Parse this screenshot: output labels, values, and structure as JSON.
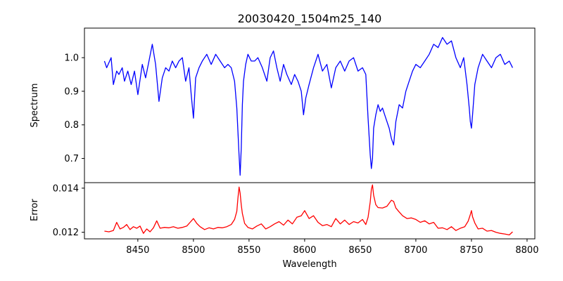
{
  "figure": {
    "title": "20030420_1504m25_140"
  },
  "chart_data": [
    {
      "type": "line",
      "panel": "spectrum",
      "title": "20030420_1504m25_140",
      "xlabel": "",
      "ylabel": "Spectrum",
      "xlim": [
        8402,
        8807
      ],
      "ylim": [
        0.628,
        1.088
      ],
      "yticks": [
        0.7,
        0.8,
        0.9,
        1.0
      ],
      "ytick_labels": [
        "0.7",
        "0.8",
        "0.9",
        "1.0"
      ],
      "grid": false,
      "color": "#0000ff",
      "series": [
        {
          "x": [
            8420,
            8422,
            8426,
            8428,
            8431,
            8433,
            8436,
            8438,
            8441,
            8444,
            8447,
            8450,
            8454,
            8457,
            8460,
            8463,
            8466,
            8469,
            8472,
            8475,
            8478,
            8481,
            8484,
            8487,
            8490,
            8493,
            8496,
            8498,
            8500,
            8502,
            8505,
            8508,
            8512,
            8516,
            8520,
            8524,
            8528,
            8531,
            8534,
            8537,
            8539,
            8540,
            8541,
            8542,
            8543,
            8544,
            8545,
            8547,
            8549,
            8552,
            8555,
            8558,
            8562,
            8566,
            8569,
            8572,
            8575,
            8578,
            8581,
            8584,
            8588,
            8591,
            8594,
            8597,
            8599,
            8601,
            8604,
            8608,
            8612,
            8616,
            8620,
            8624,
            8628,
            8632,
            8636,
            8640,
            8644,
            8648,
            8652,
            8655,
            8657,
            8659,
            8660,
            8661,
            8662,
            8664,
            8666,
            8668,
            8670,
            8673,
            8676,
            8678,
            8680,
            8682,
            8685,
            8688,
            8691,
            8694,
            8697,
            8700,
            8704,
            8708,
            8712,
            8716,
            8720,
            8724,
            8728,
            8732,
            8736,
            8740,
            8743,
            8746,
            8748,
            8749,
            8750,
            8751,
            8753,
            8756,
            8760,
            8764,
            8768,
            8772,
            8776,
            8780,
            8784,
            8787
          ],
          "y": [
            0.99,
            0.97,
            1.0,
            0.92,
            0.96,
            0.95,
            0.97,
            0.93,
            0.96,
            0.92,
            0.96,
            0.89,
            0.98,
            0.94,
            0.99,
            1.04,
            0.98,
            0.87,
            0.94,
            0.97,
            0.96,
            0.99,
            0.97,
            0.99,
            1.0,
            0.93,
            0.97,
            0.89,
            0.82,
            0.94,
            0.97,
            0.99,
            1.01,
            0.98,
            1.01,
            0.99,
            0.97,
            0.98,
            0.97,
            0.93,
            0.85,
            0.78,
            0.71,
            0.65,
            0.73,
            0.86,
            0.93,
            0.98,
            1.01,
            0.99,
            0.99,
            1.0,
            0.97,
            0.93,
            1.0,
            1.02,
            0.97,
            0.93,
            0.98,
            0.95,
            0.92,
            0.95,
            0.93,
            0.9,
            0.83,
            0.88,
            0.92,
            0.97,
            1.01,
            0.96,
            0.98,
            0.91,
            0.97,
            0.99,
            0.96,
            0.99,
            1.0,
            0.96,
            0.97,
            0.95,
            0.82,
            0.71,
            0.67,
            0.7,
            0.79,
            0.83,
            0.86,
            0.84,
            0.85,
            0.82,
            0.79,
            0.76,
            0.74,
            0.81,
            0.86,
            0.85,
            0.9,
            0.93,
            0.96,
            0.98,
            0.97,
            0.99,
            1.01,
            1.04,
            1.03,
            1.06,
            1.04,
            1.05,
            1.0,
            0.97,
            1.0,
            0.92,
            0.85,
            0.81,
            0.79,
            0.83,
            0.92,
            0.97,
            1.01,
            0.99,
            0.97,
            1.0,
            1.01,
            0.98,
            0.99,
            0.97
          ]
        }
      ]
    },
    {
      "type": "line",
      "panel": "error",
      "title": "",
      "xlabel": "Wavelength",
      "ylabel": "Error",
      "xlim": [
        8402,
        8807
      ],
      "ylim": [
        0.0117,
        0.01425
      ],
      "xticks": [
        8450,
        8500,
        8550,
        8600,
        8650,
        8700,
        8750,
        8800
      ],
      "xtick_labels": [
        "8450",
        "8500",
        "8550",
        "8600",
        "8650",
        "8700",
        "8750",
        "8800"
      ],
      "yticks": [
        0.012,
        0.014
      ],
      "ytick_labels": [
        "0.012",
        "0.014"
      ],
      "grid": false,
      "color": "#ff0000",
      "series": [
        {
          "x": [
            8420,
            8424,
            8428,
            8431,
            8434,
            8437,
            8440,
            8443,
            8446,
            8449,
            8452,
            8455,
            8458,
            8461,
            8464,
            8467,
            8470,
            8474,
            8478,
            8482,
            8486,
            8490,
            8494,
            8497,
            8500,
            8503,
            8506,
            8510,
            8514,
            8518,
            8522,
            8526,
            8530,
            8534,
            8537,
            8539,
            8540,
            8541,
            8542,
            8543,
            8544,
            8546,
            8549,
            8553,
            8557,
            8561,
            8565,
            8569,
            8573,
            8577,
            8581,
            8585,
            8589,
            8593,
            8597,
            8600,
            8604,
            8608,
            8612,
            8616,
            8620,
            8624,
            8628,
            8632,
            8636,
            8640,
            8644,
            8648,
            8652,
            8655,
            8657,
            8659,
            8660,
            8661,
            8662,
            8664,
            8666,
            8670,
            8674,
            8678,
            8680,
            8682,
            8685,
            8688,
            8692,
            8696,
            8700,
            8704,
            8708,
            8712,
            8716,
            8720,
            8724,
            8728,
            8732,
            8736,
            8740,
            8744,
            8747,
            8749,
            8750,
            8751,
            8753,
            8756,
            8760,
            8764,
            8768,
            8772,
            8776,
            8780,
            8784,
            8787
          ],
          "y": [
            0.01205,
            0.01202,
            0.01208,
            0.01245,
            0.01215,
            0.01222,
            0.01235,
            0.01212,
            0.01225,
            0.01218,
            0.01228,
            0.01195,
            0.01215,
            0.01202,
            0.0122,
            0.01252,
            0.01218,
            0.01222,
            0.0122,
            0.01225,
            0.01218,
            0.01222,
            0.01228,
            0.01245,
            0.01262,
            0.0124,
            0.01225,
            0.01212,
            0.0122,
            0.01215,
            0.01222,
            0.0122,
            0.01225,
            0.01235,
            0.01258,
            0.01295,
            0.01355,
            0.01405,
            0.01378,
            0.01325,
            0.01285,
            0.0124,
            0.01222,
            0.01215,
            0.01228,
            0.01238,
            0.01215,
            0.01225,
            0.01238,
            0.01248,
            0.01232,
            0.01255,
            0.01238,
            0.01268,
            0.01275,
            0.01298,
            0.01262,
            0.01275,
            0.01245,
            0.0123,
            0.01235,
            0.01225,
            0.01262,
            0.01238,
            0.01255,
            0.01235,
            0.01248,
            0.01242,
            0.01258,
            0.01235,
            0.01268,
            0.01338,
            0.01395,
            0.01415,
            0.01368,
            0.01325,
            0.01312,
            0.0131,
            0.01318,
            0.01345,
            0.0134,
            0.0131,
            0.01292,
            0.01275,
            0.01262,
            0.01265,
            0.01258,
            0.01245,
            0.01252,
            0.01238,
            0.01245,
            0.01218,
            0.0122,
            0.01212,
            0.01225,
            0.01208,
            0.01218,
            0.01225,
            0.0125,
            0.0128,
            0.01298,
            0.0127,
            0.01242,
            0.01215,
            0.01218,
            0.01205,
            0.01208,
            0.012,
            0.01195,
            0.01192,
            0.01188,
            0.01202
          ]
        }
      ]
    }
  ]
}
